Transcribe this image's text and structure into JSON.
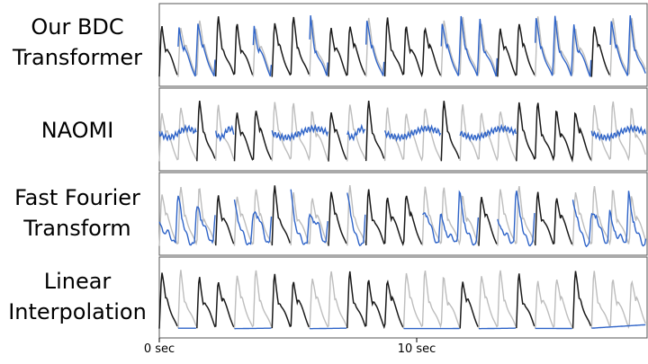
{
  "panels": [
    {
      "line1": "Our BDC",
      "line2": "Transformer"
    },
    {
      "line1": "NAOMI",
      "line2": ""
    },
    {
      "line1": "Fast Fourier",
      "line2": "Transform"
    },
    {
      "line1": "Linear",
      "line2": "Interpolation"
    }
  ],
  "x_ticks": [
    "0 sec",
    "10 sec"
  ],
  "colors": {
    "ground_truth": "#bdbdbd",
    "observed": "#1a1a1a",
    "imputed": "#2f64c8",
    "frame": "#555555"
  },
  "chart_data": {
    "type": "line",
    "title": "",
    "xlabel": "",
    "ylabel": "",
    "x_unit": "sec",
    "xlim": [
      0,
      20
    ],
    "x_ticks": [
      0,
      10
    ],
    "n_panels": 4,
    "beats_per_panel": 26,
    "legend": "none",
    "grid": false
  }
}
